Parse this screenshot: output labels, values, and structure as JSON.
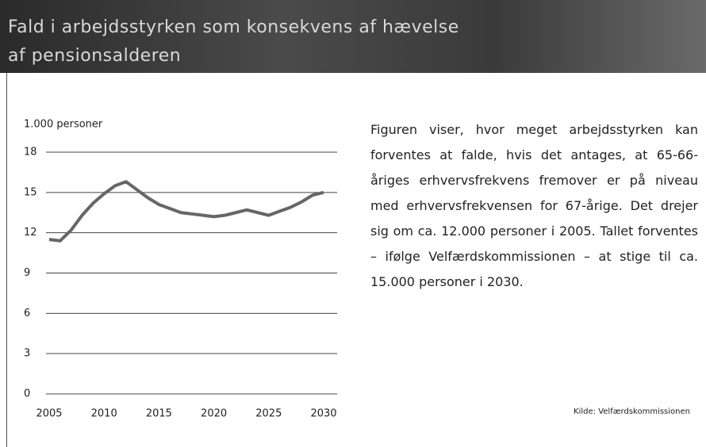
{
  "header": {
    "title_line1": "Fald i arbejdsstyrken som konsekvens af hævelse",
    "title_line2": "af pensionsalderen"
  },
  "text": "Figuren viser, hvor meget arbejdsstyrken kan forventes at falde, hvis det antages, at 65-66-åriges erhvervsfrekvens fremover er på niveau med erhvervsfrekvensen for 67-årige. Det drejer sig om ca. 12.000 personer i 2005. Tallet forventes – ifølge Velfærdskommissionen – at stige til ca. 15.000 personer i 2030.",
  "source": "Kilde: Velfærdskommissionen",
  "chart_data": {
    "type": "line",
    "ylabel": "1.000 personer",
    "x": [
      2005,
      2006,
      2007,
      2008,
      2009,
      2010,
      2011,
      2012,
      2013,
      2014,
      2015,
      2016,
      2017,
      2018,
      2019,
      2020,
      2021,
      2022,
      2023,
      2024,
      2025,
      2026,
      2027,
      2028,
      2029,
      2030
    ],
    "series": [
      {
        "name": "Fald i arbejdsstyrken",
        "color": "#666666",
        "values": [
          11.5,
          11.4,
          12.2,
          13.3,
          14.2,
          14.9,
          15.5,
          15.8,
          15.2,
          14.6,
          14.1,
          13.8,
          13.5,
          13.4,
          13.3,
          13.2,
          13.3,
          13.5,
          13.7,
          13.5,
          13.3,
          13.6,
          13.9,
          14.3,
          14.8,
          15.0
        ]
      }
    ],
    "xlim": [
      2005,
      2030
    ],
    "xticks": [
      2005,
      2010,
      2015,
      2020,
      2025,
      2030
    ],
    "ylim": [
      0,
      18
    ],
    "yticks": [
      0,
      3,
      6,
      9,
      12,
      15,
      18
    ],
    "grid": true
  }
}
